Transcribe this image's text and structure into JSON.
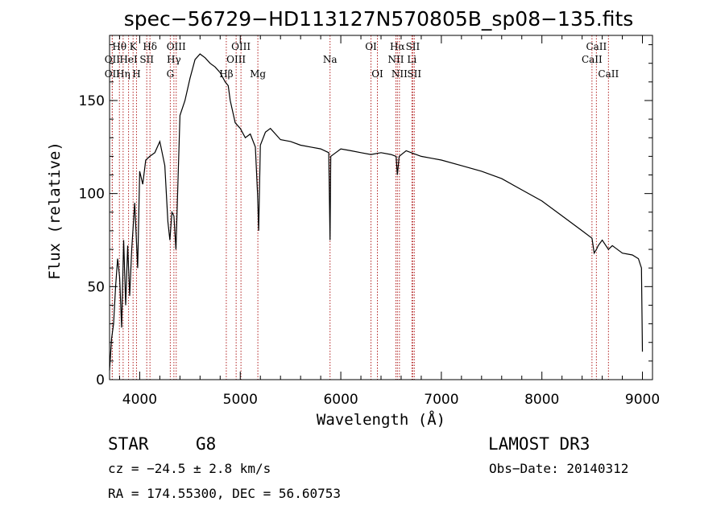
{
  "chart_data": {
    "type": "line",
    "title": "spec−56729−HD113127N570805B_sp08−135.fits",
    "xlabel": "Wavelength (Å)",
    "ylabel": "Flux (relative)",
    "xlim": [
      3700,
      9100
    ],
    "ylim": [
      0,
      185
    ],
    "xticks": [
      4000,
      5000,
      6000,
      7000,
      8000,
      9000
    ],
    "yticks": [
      0,
      50,
      100,
      150
    ],
    "grid": false,
    "series": [
      {
        "x": [
          3700,
          3720,
          3740,
          3760,
          3780,
          3800,
          3820,
          3840,
          3860,
          3880,
          3900,
          3920,
          3950,
          3980,
          4000,
          4030,
          4060,
          4100,
          4150,
          4200,
          4250,
          4280,
          4300,
          4320,
          4340,
          4360,
          4400,
          4450,
          4500,
          4550,
          4600,
          4650,
          4700,
          4750,
          4800,
          4850,
          4880,
          4900,
          4950,
          5000,
          5050,
          5100,
          5150,
          5172,
          5183,
          5200,
          5250,
          5300,
          5400,
          5500,
          5600,
          5700,
          5800,
          5880,
          5893,
          5900,
          5950,
          6000,
          6100,
          6200,
          6300,
          6400,
          6500,
          6550,
          6563,
          6580,
          6650,
          6700,
          6800,
          6900,
          7000,
          7200,
          7400,
          7600,
          7800,
          8000,
          8200,
          8400,
          8498,
          8520,
          8542,
          8560,
          8600,
          8662,
          8700,
          8800,
          8900,
          8960,
          8990,
          9000
        ],
        "y": [
          5,
          22,
          30,
          50,
          65,
          55,
          28,
          75,
          40,
          72,
          45,
          70,
          95,
          60,
          112,
          105,
          118,
          120,
          122,
          128,
          115,
          85,
          75,
          90,
          88,
          70,
          142,
          150,
          162,
          172,
          175,
          173,
          170,
          168,
          165,
          160,
          158,
          150,
          138,
          135,
          130,
          132,
          125,
          100,
          80,
          126,
          133,
          135,
          129,
          128,
          126,
          125,
          124,
          122,
          75,
          120,
          122,
          124,
          123,
          122,
          121,
          122,
          121,
          120,
          110,
          120,
          123,
          122,
          120,
          119,
          118,
          115,
          112,
          108,
          102,
          96,
          88,
          80,
          76,
          68,
          70,
          72,
          75,
          70,
          72,
          68,
          67,
          65,
          60,
          15
        ],
        "color": "#000000"
      }
    ],
    "spectral_lines": [
      {
        "wl": 3798,
        "label": "Hθ",
        "row": 0
      },
      {
        "wl": 3727,
        "label": "OII",
        "row": 1
      },
      {
        "wl": 3727,
        "label": "OII",
        "row": 2
      },
      {
        "wl": 3835,
        "label": "Hη",
        "row": 2
      },
      {
        "wl": 3889,
        "label": "HeI",
        "row": 1
      },
      {
        "wl": 3934,
        "label": "K",
        "row": 0
      },
      {
        "wl": 3968,
        "label": "H",
        "row": 2
      },
      {
        "wl": 4070,
        "label": "SII",
        "row": 1
      },
      {
        "wl": 4102,
        "label": "Hδ",
        "row": 0
      },
      {
        "wl": 4304,
        "label": "G",
        "row": 2
      },
      {
        "wl": 4340,
        "label": "Hγ",
        "row": 1
      },
      {
        "wl": 4363,
        "label": "OIII",
        "row": 0
      },
      {
        "wl": 4861,
        "label": "Hβ",
        "row": 2
      },
      {
        "wl": 4959,
        "label": "OIII",
        "row": 1
      },
      {
        "wl": 5007,
        "label": "OIII",
        "row": 0
      },
      {
        "wl": 5175,
        "label": "Mg",
        "row": 2
      },
      {
        "wl": 5893,
        "label": "Na",
        "row": 1
      },
      {
        "wl": 6300,
        "label": "OI",
        "row": 0
      },
      {
        "wl": 6364,
        "label": "OI",
        "row": 2
      },
      {
        "wl": 6548,
        "label": "NII",
        "row": 1
      },
      {
        "wl": 6563,
        "label": "Hα",
        "row": 0
      },
      {
        "wl": 6583,
        "label": "NII",
        "row": 2
      },
      {
        "wl": 6707,
        "label": "Li",
        "row": 1
      },
      {
        "wl": 6716,
        "label": "SII",
        "row": 0
      },
      {
        "wl": 6731,
        "label": "SII",
        "row": 2
      },
      {
        "wl": 8498,
        "label": "CaII",
        "row": 1
      },
      {
        "wl": 8542,
        "label": "CaII",
        "row": 0
      },
      {
        "wl": 8662,
        "label": "CaII",
        "row": 2
      }
    ]
  },
  "info": {
    "class": "STAR",
    "subclass": "G8",
    "survey": "LAMOST DR3",
    "cz": "cz = −24.5 ± 2.8 km/s",
    "obs_date": "Obs−Date: 20140312",
    "radec": "RA = 174.55300, DEC =  56.60753"
  }
}
